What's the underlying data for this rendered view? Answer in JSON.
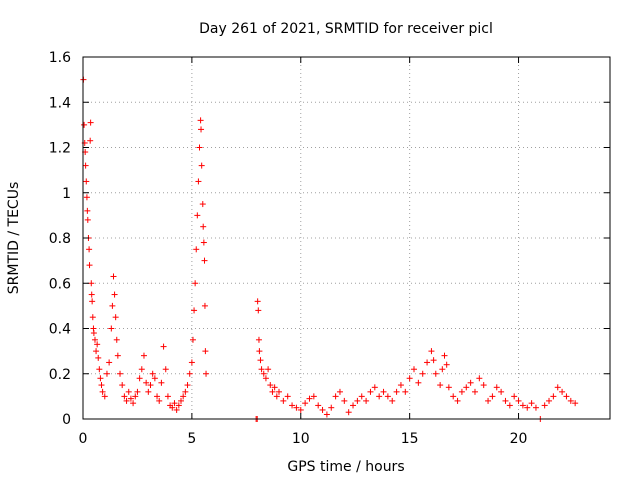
{
  "chart_data": {
    "type": "scatter",
    "title": "Day 261 of 2021, SRMTID for receiver picl",
    "xlabel": "GPS time / hours",
    "ylabel": "SRMTID / TECUs",
    "xlim": [
      0,
      24.2
    ],
    "ylim": [
      0,
      1.6
    ],
    "xticks": [
      0,
      5,
      10,
      15,
      20
    ],
    "xtick_labels": [
      "0",
      "5",
      "10",
      "15",
      "20"
    ],
    "yticks": [
      0,
      0.2,
      0.4,
      0.6,
      0.8,
      1.0,
      1.2,
      1.4,
      1.6
    ],
    "ytick_labels": [
      "0",
      "0.2",
      "0.4",
      "0.6",
      "0.8",
      "1",
      "1.2",
      "1.4",
      "1.6"
    ],
    "grid": true,
    "marker": "+",
    "color": "#ff0000",
    "series": [
      {
        "name": "SRMTID",
        "points": [
          [
            0.02,
            1.5
          ],
          [
            0.05,
            1.3
          ],
          [
            0.08,
            1.22
          ],
          [
            0.1,
            1.18
          ],
          [
            0.12,
            1.12
          ],
          [
            0.15,
            1.05
          ],
          [
            0.18,
            0.98
          ],
          [
            0.2,
            0.92
          ],
          [
            0.22,
            0.88
          ],
          [
            0.25,
            0.8
          ],
          [
            0.28,
            0.75
          ],
          [
            0.3,
            0.68
          ],
          [
            0.33,
            1.23
          ],
          [
            0.35,
            1.31
          ],
          [
            0.38,
            0.6
          ],
          [
            0.4,
            0.55
          ],
          [
            0.42,
            0.52
          ],
          [
            0.45,
            0.45
          ],
          [
            0.48,
            0.4
          ],
          [
            0.5,
            0.38
          ],
          [
            0.55,
            0.35
          ],
          [
            0.6,
            0.3
          ],
          [
            0.65,
            0.33
          ],
          [
            0.7,
            0.27
          ],
          [
            0.75,
            0.22
          ],
          [
            0.8,
            0.18
          ],
          [
            0.85,
            0.15
          ],
          [
            0.9,
            0.12
          ],
          [
            1.0,
            0.1
          ],
          [
            1.1,
            0.2
          ],
          [
            1.2,
            0.25
          ],
          [
            1.3,
            0.4
          ],
          [
            1.35,
            0.5
          ],
          [
            1.4,
            0.63
          ],
          [
            1.45,
            0.55
          ],
          [
            1.5,
            0.45
          ],
          [
            1.55,
            0.35
          ],
          [
            1.6,
            0.28
          ],
          [
            1.7,
            0.2
          ],
          [
            1.8,
            0.15
          ],
          [
            1.9,
            0.1
          ],
          [
            2.0,
            0.08
          ],
          [
            2.1,
            0.12
          ],
          [
            2.2,
            0.09
          ],
          [
            2.3,
            0.07
          ],
          [
            2.4,
            0.1
          ],
          [
            2.5,
            0.12
          ],
          [
            2.6,
            0.18
          ],
          [
            2.7,
            0.22
          ],
          [
            2.8,
            0.28
          ],
          [
            2.9,
            0.16
          ],
          [
            3.0,
            0.12
          ],
          [
            3.1,
            0.15
          ],
          [
            3.2,
            0.2
          ],
          [
            3.3,
            0.18
          ],
          [
            3.4,
            0.1
          ],
          [
            3.5,
            0.08
          ],
          [
            3.6,
            0.16
          ],
          [
            3.7,
            0.32
          ],
          [
            3.8,
            0.22
          ],
          [
            3.9,
            0.1
          ],
          [
            4.0,
            0.06
          ],
          [
            4.1,
            0.05
          ],
          [
            4.2,
            0.07
          ],
          [
            4.3,
            0.04
          ],
          [
            4.4,
            0.06
          ],
          [
            4.5,
            0.08
          ],
          [
            4.6,
            0.1
          ],
          [
            4.7,
            0.12
          ],
          [
            4.8,
            0.15
          ],
          [
            4.9,
            0.2
          ],
          [
            5.0,
            0.25
          ],
          [
            5.05,
            0.35
          ],
          [
            5.1,
            0.48
          ],
          [
            5.15,
            0.6
          ],
          [
            5.2,
            0.75
          ],
          [
            5.25,
            0.9
          ],
          [
            5.3,
            1.05
          ],
          [
            5.35,
            1.2
          ],
          [
            5.4,
            1.32
          ],
          [
            5.42,
            1.28
          ],
          [
            5.45,
            1.12
          ],
          [
            5.5,
            0.95
          ],
          [
            5.52,
            0.85
          ],
          [
            5.55,
            0.78
          ],
          [
            5.58,
            0.7
          ],
          [
            5.6,
            0.5
          ],
          [
            5.62,
            0.3
          ],
          [
            5.65,
            0.2
          ],
          [
            7.95,
            0.0
          ],
          [
            8.0,
            0.0
          ],
          [
            8.02,
            0.52
          ],
          [
            8.05,
            0.48
          ],
          [
            8.08,
            0.35
          ],
          [
            8.1,
            0.3
          ],
          [
            8.15,
            0.26
          ],
          [
            8.2,
            0.22
          ],
          [
            8.3,
            0.2
          ],
          [
            8.4,
            0.18
          ],
          [
            8.5,
            0.22
          ],
          [
            8.6,
            0.15
          ],
          [
            8.7,
            0.12
          ],
          [
            8.8,
            0.14
          ],
          [
            8.9,
            0.1
          ],
          [
            9.0,
            0.12
          ],
          [
            9.2,
            0.08
          ],
          [
            9.4,
            0.1
          ],
          [
            9.6,
            0.06
          ],
          [
            9.8,
            0.05
          ],
          [
            10.0,
            0.04
          ],
          [
            10.2,
            0.07
          ],
          [
            10.4,
            0.09
          ],
          [
            10.6,
            0.1
          ],
          [
            10.8,
            0.06
          ],
          [
            11.0,
            0.04
          ],
          [
            11.2,
            0.02
          ],
          [
            11.4,
            0.05
          ],
          [
            11.6,
            0.1
          ],
          [
            11.8,
            0.12
          ],
          [
            12.0,
            0.08
          ],
          [
            12.2,
            0.03
          ],
          [
            12.4,
            0.06
          ],
          [
            12.6,
            0.08
          ],
          [
            12.8,
            0.1
          ],
          [
            13.0,
            0.08
          ],
          [
            13.2,
            0.12
          ],
          [
            13.4,
            0.14
          ],
          [
            13.6,
            0.1
          ],
          [
            13.8,
            0.12
          ],
          [
            14.0,
            0.1
          ],
          [
            14.2,
            0.08
          ],
          [
            14.4,
            0.12
          ],
          [
            14.6,
            0.15
          ],
          [
            14.8,
            0.12
          ],
          [
            15.0,
            0.18
          ],
          [
            15.2,
            0.22
          ],
          [
            15.4,
            0.16
          ],
          [
            15.6,
            0.2
          ],
          [
            15.8,
            0.25
          ],
          [
            16.0,
            0.3
          ],
          [
            16.1,
            0.26
          ],
          [
            16.2,
            0.2
          ],
          [
            16.4,
            0.15
          ],
          [
            16.5,
            0.22
          ],
          [
            16.6,
            0.28
          ],
          [
            16.7,
            0.24
          ],
          [
            16.8,
            0.14
          ],
          [
            17.0,
            0.1
          ],
          [
            17.2,
            0.08
          ],
          [
            17.4,
            0.12
          ],
          [
            17.6,
            0.14
          ],
          [
            17.8,
            0.16
          ],
          [
            18.0,
            0.12
          ],
          [
            18.2,
            0.18
          ],
          [
            18.4,
            0.15
          ],
          [
            18.6,
            0.08
          ],
          [
            18.8,
            0.1
          ],
          [
            19.0,
            0.14
          ],
          [
            19.2,
            0.12
          ],
          [
            19.4,
            0.08
          ],
          [
            19.6,
            0.06
          ],
          [
            19.8,
            0.1
          ],
          [
            20.0,
            0.08
          ],
          [
            20.2,
            0.06
          ],
          [
            20.4,
            0.05
          ],
          [
            20.6,
            0.07
          ],
          [
            20.8,
            0.05
          ],
          [
            21.0,
            0.0
          ],
          [
            21.2,
            0.06
          ],
          [
            21.4,
            0.08
          ],
          [
            21.6,
            0.1
          ],
          [
            21.8,
            0.14
          ],
          [
            22.0,
            0.12
          ],
          [
            22.2,
            0.1
          ],
          [
            22.4,
            0.08
          ],
          [
            22.6,
            0.07
          ]
        ]
      }
    ]
  }
}
